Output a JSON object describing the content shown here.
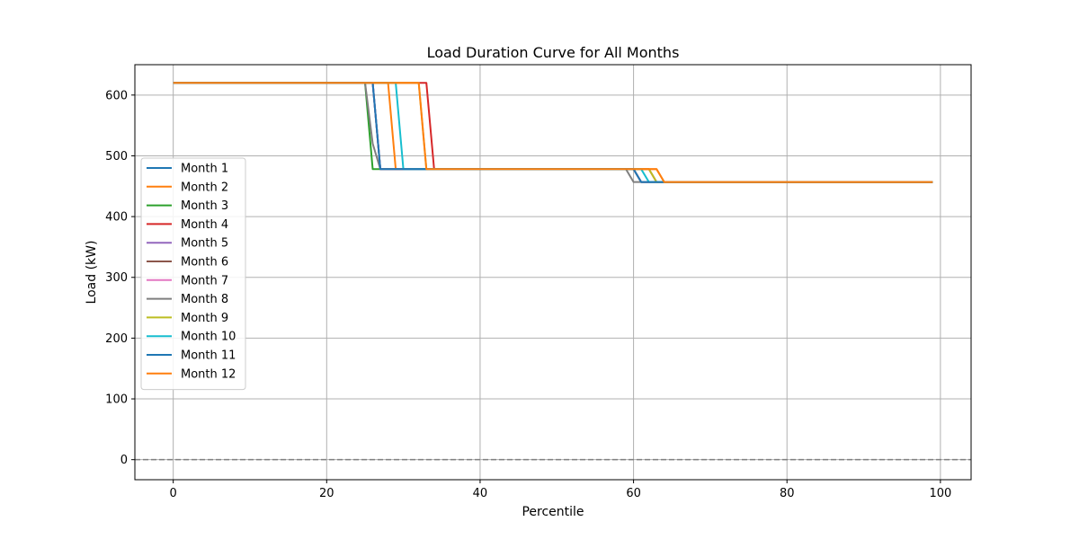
{
  "chart_data": {
    "type": "line",
    "title": "Load Duration Curve for All Months",
    "xlabel": "Percentile",
    "ylabel": "Load (kW)",
    "xlim": [
      -5,
      104
    ],
    "ylim": [
      -33,
      650
    ],
    "xticks": [
      0,
      20,
      40,
      60,
      80,
      100
    ],
    "yticks": [
      0,
      100,
      200,
      300,
      400,
      500,
      600
    ],
    "grid": true,
    "legend_position": "center-left",
    "reference_line": {
      "y": 0,
      "style": "dashed",
      "color": "#808080"
    },
    "series": [
      {
        "name": "Month 1",
        "color": "#1f77b4",
        "points": [
          [
            0,
            620
          ],
          [
            26,
            620
          ],
          [
            27,
            478
          ],
          [
            60,
            478
          ],
          [
            61,
            457
          ],
          [
            99,
            457
          ]
        ]
      },
      {
        "name": "Month 2",
        "color": "#ff7f0e",
        "points": [
          [
            0,
            620
          ],
          [
            28,
            620
          ],
          [
            29,
            478
          ],
          [
            63,
            478
          ],
          [
            64,
            457
          ],
          [
            99,
            457
          ]
        ]
      },
      {
        "name": "Month 3",
        "color": "#2ca02c",
        "points": [
          [
            0,
            620
          ],
          [
            25,
            620
          ],
          [
            26,
            478
          ],
          [
            60,
            478
          ],
          [
            61,
            457
          ],
          [
            99,
            457
          ]
        ]
      },
      {
        "name": "Month 4",
        "color": "#d62728",
        "points": [
          [
            0,
            620
          ],
          [
            33,
            620
          ],
          [
            34,
            478
          ],
          [
            62,
            478
          ],
          [
            63,
            457
          ],
          [
            99,
            457
          ]
        ]
      },
      {
        "name": "Month 5",
        "color": "#9467bd",
        "points": [
          [
            0,
            620
          ],
          [
            26,
            620
          ],
          [
            27,
            478
          ],
          [
            60,
            478
          ],
          [
            61,
            457
          ],
          [
            99,
            457
          ]
        ]
      },
      {
        "name": "Month 6",
        "color": "#8c564b",
        "points": [
          [
            0,
            620
          ],
          [
            26,
            620
          ],
          [
            27,
            478
          ],
          [
            60,
            478
          ],
          [
            61,
            457
          ],
          [
            99,
            457
          ]
        ]
      },
      {
        "name": "Month 7",
        "color": "#e377c2",
        "points": [
          [
            0,
            620
          ],
          [
            26,
            620
          ],
          [
            27,
            478
          ],
          [
            60,
            478
          ],
          [
            61,
            457
          ],
          [
            99,
            457
          ]
        ]
      },
      {
        "name": "Month 8",
        "color": "#7f7f7f",
        "points": [
          [
            0,
            620
          ],
          [
            25,
            620
          ],
          [
            26,
            520
          ],
          [
            27,
            478
          ],
          [
            59,
            478
          ],
          [
            60,
            457
          ],
          [
            99,
            457
          ]
        ]
      },
      {
        "name": "Month 9",
        "color": "#bcbd22",
        "points": [
          [
            0,
            620
          ],
          [
            32,
            620
          ],
          [
            33,
            478
          ],
          [
            62,
            478
          ],
          [
            63,
            457
          ],
          [
            99,
            457
          ]
        ]
      },
      {
        "name": "Month 10",
        "color": "#17becf",
        "points": [
          [
            0,
            620
          ],
          [
            29,
            620
          ],
          [
            30,
            478
          ],
          [
            61,
            478
          ],
          [
            62,
            457
          ],
          [
            99,
            457
          ]
        ]
      },
      {
        "name": "Month 11",
        "color": "#1f77b4",
        "points": [
          [
            0,
            620
          ],
          [
            26,
            620
          ],
          [
            27,
            478
          ],
          [
            60,
            478
          ],
          [
            61,
            457
          ],
          [
            99,
            457
          ]
        ]
      },
      {
        "name": "Month 12",
        "color": "#ff7f0e",
        "points": [
          [
            0,
            620
          ],
          [
            32,
            620
          ],
          [
            33,
            478
          ],
          [
            63,
            478
          ],
          [
            64,
            457
          ],
          [
            99,
            457
          ]
        ]
      }
    ]
  }
}
